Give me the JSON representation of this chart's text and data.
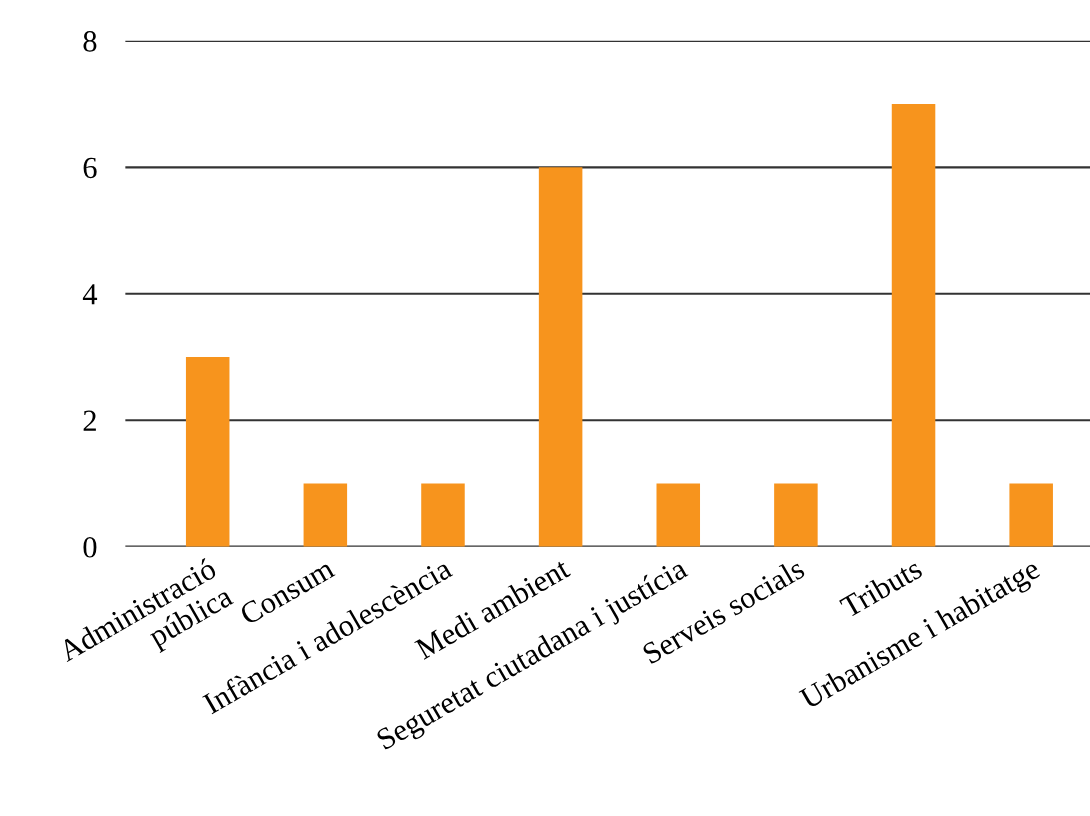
{
  "chart_data": {
    "type": "bar",
    "categories": [
      "Administració\npública",
      "Consum",
      "Infància i adolescència",
      "Medi ambient",
      "Seguretat ciutadana i justícia",
      "Serveis socials",
      "Tributs",
      "Urbanisme i habitatge"
    ],
    "values": [
      3,
      1,
      1,
      6,
      1,
      1,
      7,
      1
    ],
    "color": "#f7941d",
    "ylim": [
      0,
      8
    ],
    "yticks": [
      0,
      2,
      4,
      6,
      8
    ],
    "grid": "y"
  }
}
